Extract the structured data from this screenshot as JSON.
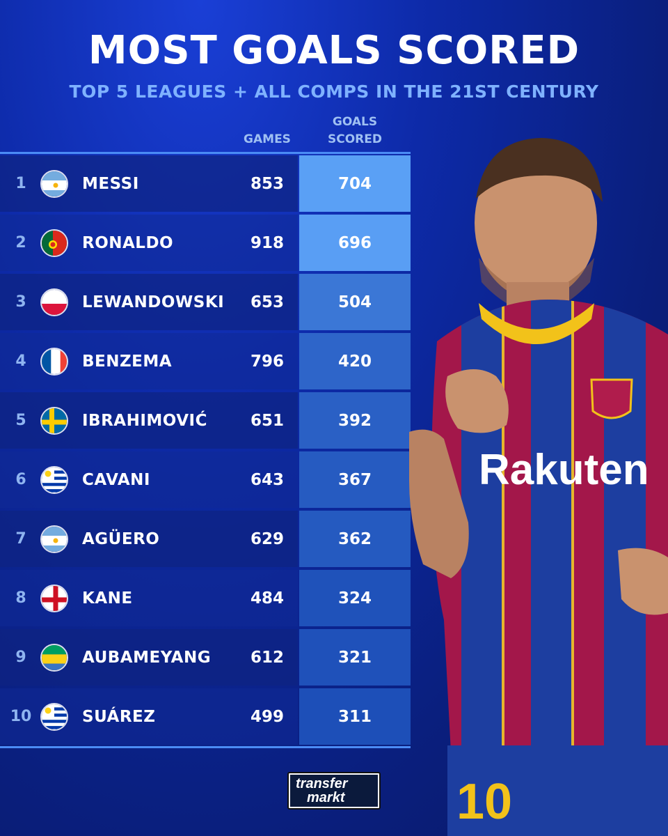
{
  "header": {
    "title": "MOST GOALS SCORED",
    "subtitle": "TOP 5 LEAGUES + ALL COMPS IN THE 21ST CENTURY"
  },
  "columns": {
    "games": "GAMES",
    "goals_line1": "GOALS",
    "goals_line2": "SCORED"
  },
  "rows": [
    {
      "rank": "1",
      "flag": "argentina-flag-icon",
      "name": "MESSI",
      "games": "853",
      "goals": "704"
    },
    {
      "rank": "2",
      "flag": "portugal-flag-icon",
      "name": "RONALDO",
      "games": "918",
      "goals": "696"
    },
    {
      "rank": "3",
      "flag": "poland-flag-icon",
      "name": "LEWANDOWSKI",
      "games": "653",
      "goals": "504"
    },
    {
      "rank": "4",
      "flag": "france-flag-icon",
      "name": "BENZEMA",
      "games": "796",
      "goals": "420"
    },
    {
      "rank": "5",
      "flag": "sweden-flag-icon",
      "name": "IBRAHIMOVIĆ",
      "games": "651",
      "goals": "392"
    },
    {
      "rank": "6",
      "flag": "uruguay-flag-icon",
      "name": "CAVANI",
      "games": "643",
      "goals": "367"
    },
    {
      "rank": "7",
      "flag": "argentina-flag-icon",
      "name": "AGÜERO",
      "games": "629",
      "goals": "362"
    },
    {
      "rank": "8",
      "flag": "england-flag-icon",
      "name": "KANE",
      "games": "484",
      "goals": "324"
    },
    {
      "rank": "9",
      "flag": "gabon-flag-icon",
      "name": "AUBAMEYANG",
      "games": "612",
      "goals": "321"
    },
    {
      "rank": "10",
      "flag": "uruguay-flag-icon",
      "name": "SUÁREZ",
      "games": "499",
      "goals": "311"
    }
  ],
  "player": {
    "sponsor": "Rakuten",
    "shirt_number": "10"
  },
  "logo": {
    "line1": "transfer",
    "line2": "markt"
  },
  "colors": {
    "background": "#0d2aa8",
    "accent": "#4b8cf5",
    "subtitle": "#7fb2ff",
    "goals_max": "#5aa0f5",
    "goals_min": "#1d4fb8"
  }
}
